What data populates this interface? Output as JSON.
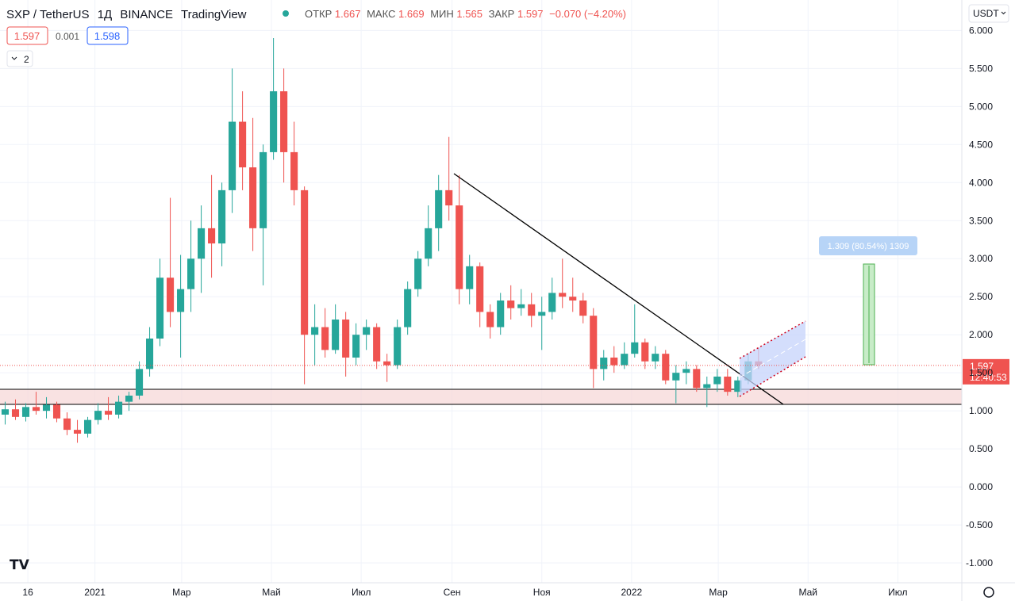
{
  "chart_data": {
    "type": "candlestick",
    "symbol": "SXP / TetherUS",
    "interval": "1Д",
    "exchange": "BINANCE",
    "platform": "TradingView",
    "legend": {
      "open_label": "ОТКР",
      "open": 1.667,
      "high_label": "МАКС",
      "high": 1.669,
      "low_label": "МИН",
      "low": 1.565,
      "close_label": "ЗАКР",
      "close": 1.597,
      "change": "−0.070 (−4.20%)"
    },
    "sell_price": 1.597,
    "spread": 0.001,
    "buy_price": 1.598,
    "indicators_count": "2",
    "currency": "USDT",
    "last_price": 1.597,
    "countdown": "12:40:53",
    "measure_label": "1.309 (80.54%) 1309",
    "up_color": "#26a69a",
    "down_color": "#ef5350",
    "grid": true,
    "ylim": [
      -1.26,
      6.4
    ],
    "yticks": [
      {
        "value": -1,
        "label": "-1.000"
      },
      {
        "value": -0.5,
        "label": "-0.500"
      },
      {
        "value": 0,
        "label": "0.000"
      },
      {
        "value": 0.5,
        "label": "0.500"
      },
      {
        "value": 1,
        "label": "1.000"
      },
      {
        "value": 1.5,
        "label": "1.500"
      },
      {
        "value": 2,
        "label": "2.000"
      },
      {
        "value": 2.5,
        "label": "2.500"
      },
      {
        "value": 3,
        "label": "3.000"
      },
      {
        "value": 3.5,
        "label": "3.500"
      },
      {
        "value": 4,
        "label": "4.000"
      },
      {
        "value": 4.5,
        "label": "4.500"
      },
      {
        "value": 5,
        "label": "5.000"
      },
      {
        "value": 5.5,
        "label": "5.500"
      },
      {
        "value": 6,
        "label": "6.000"
      }
    ],
    "xlim": [
      0,
      93.2
    ],
    "xticks": [
      {
        "value": 2.7,
        "label": "16"
      },
      {
        "value": 9.2,
        "label": "2021"
      },
      {
        "value": 17.6,
        "label": "Мар"
      },
      {
        "value": 26.3,
        "label": "Май"
      },
      {
        "value": 35,
        "label": "Июл"
      },
      {
        "value": 43.8,
        "label": "Сен"
      },
      {
        "value": 52.5,
        "label": "Ноя"
      },
      {
        "value": 61.2,
        "label": "2022"
      },
      {
        "value": 69.6,
        "label": "Мар"
      },
      {
        "value": 78.3,
        "label": "Май"
      },
      {
        "value": 87,
        "label": "Июл"
      }
    ],
    "ohlc": [
      [
        0.95,
        1.12,
        0.82,
        1.02
      ],
      [
        1.02,
        1.15,
        0.88,
        0.92
      ],
      [
        0.92,
        1.1,
        0.86,
        1.05
      ],
      [
        1.05,
        1.25,
        0.95,
        1.0
      ],
      [
        1.0,
        1.18,
        0.9,
        1.08
      ],
      [
        1.08,
        1.12,
        0.85,
        0.9
      ],
      [
        0.9,
        0.98,
        0.68,
        0.75
      ],
      [
        0.75,
        0.88,
        0.58,
        0.7
      ],
      [
        0.7,
        0.92,
        0.65,
        0.88
      ],
      [
        0.88,
        1.1,
        0.82,
        1.0
      ],
      [
        1.0,
        1.18,
        0.88,
        0.95
      ],
      [
        0.95,
        1.2,
        0.9,
        1.12
      ],
      [
        1.12,
        1.25,
        1.0,
        1.2
      ],
      [
        1.2,
        1.65,
        1.15,
        1.55
      ],
      [
        1.55,
        2.1,
        1.45,
        1.95
      ],
      [
        1.95,
        3.0,
        1.85,
        2.75
      ],
      [
        2.75,
        3.8,
        2.1,
        2.3
      ],
      [
        2.3,
        3.05,
        1.7,
        2.6
      ],
      [
        2.6,
        3.5,
        2.3,
        3.0
      ],
      [
        3.0,
        3.7,
        2.55,
        3.4
      ],
      [
        3.4,
        4.1,
        2.75,
        3.2
      ],
      [
        3.2,
        4.0,
        2.9,
        3.9
      ],
      [
        3.9,
        5.5,
        3.6,
        4.8
      ],
      [
        4.8,
        5.2,
        3.9,
        4.2
      ],
      [
        4.2,
        4.85,
        3.1,
        3.4
      ],
      [
        3.4,
        4.5,
        2.65,
        4.4
      ],
      [
        4.4,
        5.9,
        4.3,
        5.2
      ],
      [
        5.2,
        5.5,
        4.0,
        4.4
      ],
      [
        4.4,
        4.8,
        3.7,
        3.9
      ],
      [
        3.9,
        3.95,
        1.35,
        2.0
      ],
      [
        2.0,
        2.4,
        1.6,
        2.1
      ],
      [
        2.1,
        2.35,
        1.7,
        1.8
      ],
      [
        1.8,
        2.4,
        1.75,
        2.2
      ],
      [
        2.2,
        2.3,
        1.45,
        1.7
      ],
      [
        1.7,
        2.15,
        1.6,
        2.0
      ],
      [
        2.0,
        2.2,
        1.8,
        2.1
      ],
      [
        2.1,
        2.15,
        1.55,
        1.65
      ],
      [
        1.65,
        1.75,
        1.38,
        1.6
      ],
      [
        1.6,
        2.2,
        1.55,
        2.1
      ],
      [
        2.1,
        2.7,
        2.0,
        2.6
      ],
      [
        2.6,
        3.1,
        2.5,
        3.0
      ],
      [
        3.0,
        3.7,
        2.9,
        3.4
      ],
      [
        3.4,
        4.1,
        3.1,
        3.9
      ],
      [
        3.9,
        4.6,
        3.5,
        3.7
      ],
      [
        3.7,
        4.1,
        2.4,
        2.6
      ],
      [
        2.6,
        3.05,
        2.4,
        2.9
      ],
      [
        2.9,
        2.95,
        2.1,
        2.3
      ],
      [
        2.3,
        2.4,
        1.95,
        2.1
      ],
      [
        2.1,
        2.55,
        2.0,
        2.45
      ],
      [
        2.45,
        2.65,
        2.2,
        2.35
      ],
      [
        2.35,
        2.6,
        2.25,
        2.4
      ],
      [
        2.4,
        2.55,
        2.1,
        2.25
      ],
      [
        2.25,
        2.5,
        1.8,
        2.3
      ],
      [
        2.3,
        2.75,
        2.2,
        2.55
      ],
      [
        2.55,
        3.0,
        2.35,
        2.5
      ],
      [
        2.5,
        2.75,
        2.3,
        2.45
      ],
      [
        2.45,
        2.55,
        2.15,
        2.25
      ],
      [
        2.25,
        2.35,
        1.3,
        1.55
      ],
      [
        1.55,
        1.8,
        1.4,
        1.7
      ],
      [
        1.7,
        1.85,
        1.5,
        1.6
      ],
      [
        1.6,
        1.9,
        1.55,
        1.75
      ],
      [
        1.75,
        2.4,
        1.7,
        1.9
      ],
      [
        1.9,
        1.95,
        1.55,
        1.65
      ],
      [
        1.65,
        1.85,
        1.55,
        1.75
      ],
      [
        1.75,
        1.8,
        1.35,
        1.4
      ],
      [
        1.4,
        1.6,
        1.1,
        1.5
      ],
      [
        1.5,
        1.65,
        1.35,
        1.55
      ],
      [
        1.55,
        1.6,
        1.25,
        1.3
      ],
      [
        1.3,
        1.45,
        1.05,
        1.35
      ],
      [
        1.35,
        1.55,
        1.25,
        1.45
      ],
      [
        1.45,
        1.55,
        1.2,
        1.25
      ],
      [
        1.25,
        1.45,
        1.18,
        1.4
      ],
      [
        1.4,
        1.75,
        1.35,
        1.65
      ],
      [
        1.65,
        1.82,
        1.55,
        1.597
      ]
    ]
  }
}
